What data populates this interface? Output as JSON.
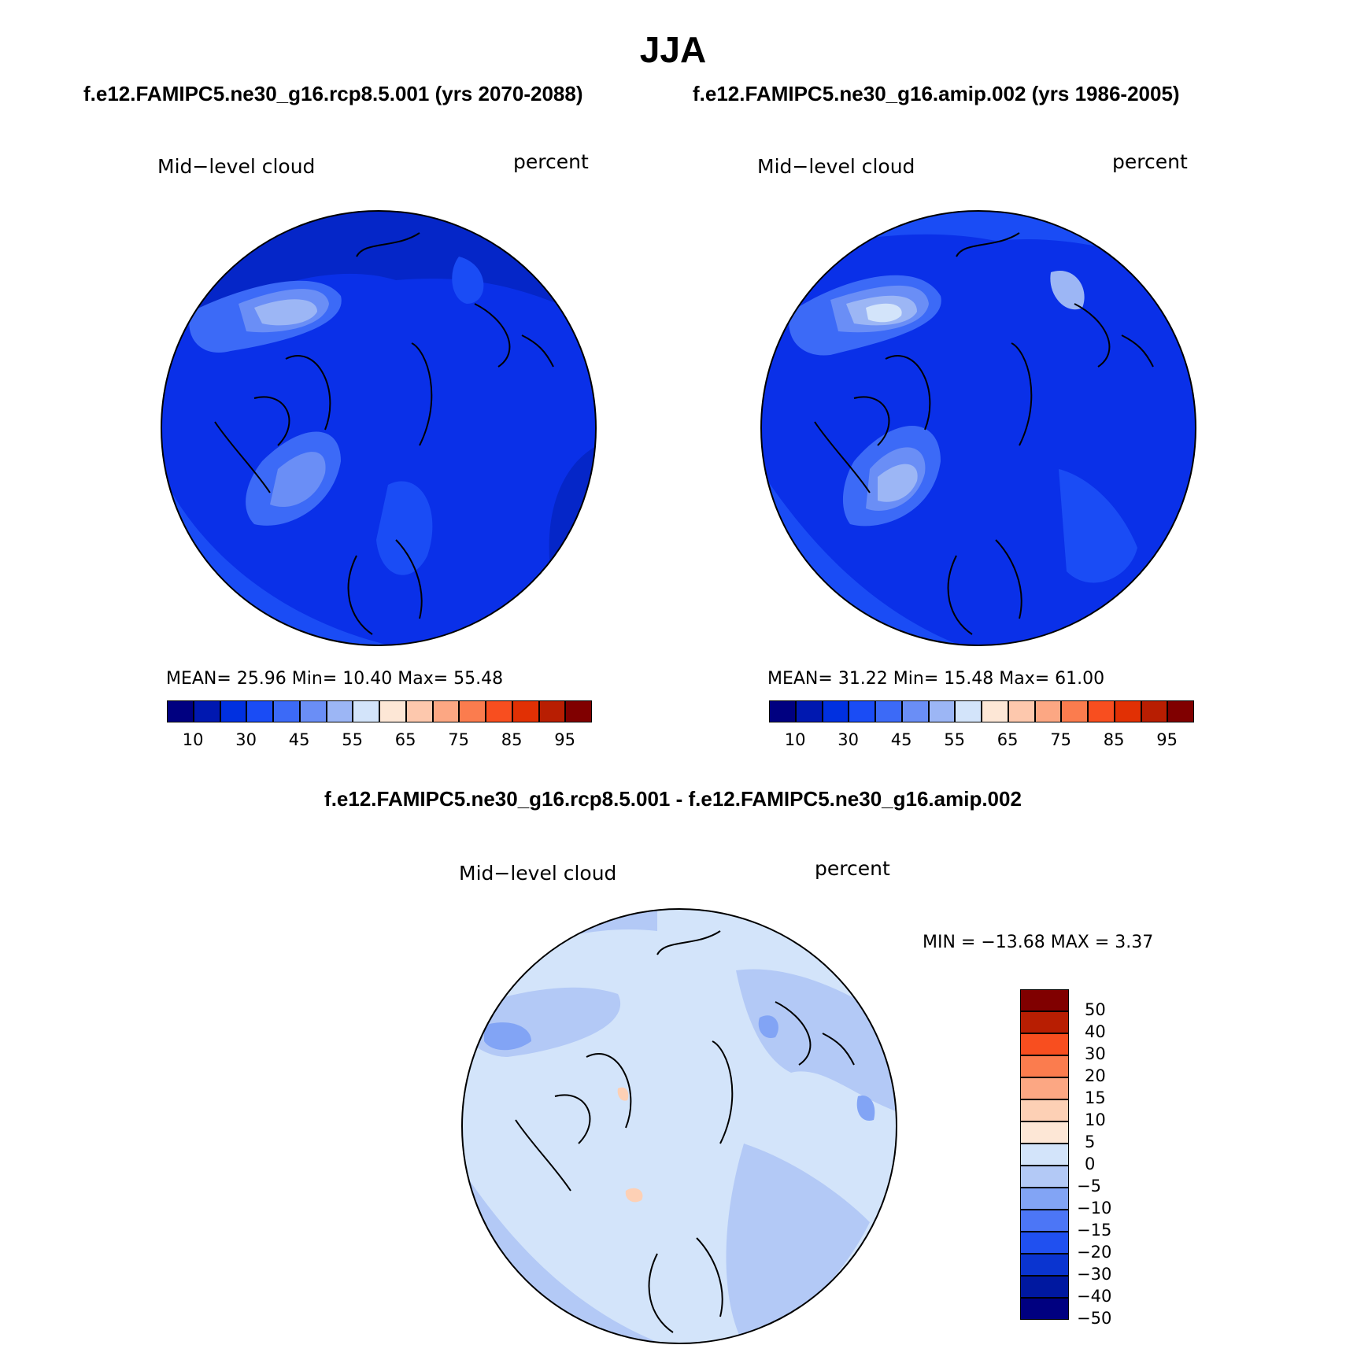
{
  "title": "JJA",
  "subtitle_left": "f.e12.FAMIPC5.ne30_g16.rcp8.5.001 (yrs 2070-2088)",
  "subtitle_right": "f.e12.FAMIPC5.ne30_g16.amip.002 (yrs 1986-2005)",
  "diff_title": "f.e12.FAMIPC5.ne30_g16.rcp8.5.001 - f.e12.FAMIPC5.ne30_g16.amip.002",
  "panels": [
    {
      "variable": "Mid−level cloud",
      "units": "percent",
      "stats": "MEAN=   25.96   Min=   10.40   Max=   55.48"
    },
    {
      "variable": "Mid−level cloud",
      "units": "percent",
      "stats": "MEAN=   31.22   Min=   15.48   Max=   61.00"
    },
    {
      "variable": "Mid−level cloud",
      "units": "percent",
      "stats": "MIN = −13.68 MAX =    3.37"
    }
  ],
  "abs_colorbar": {
    "colors": [
      "#000080",
      "#0018b0",
      "#0030e0",
      "#1a4cf5",
      "#3c6af7",
      "#6a8ef6",
      "#9cb6f5",
      "#d3e4fa",
      "#fde7d6",
      "#fdc8ad",
      "#fca783",
      "#fb7c4e",
      "#f84e1f",
      "#e13004",
      "#b81e02",
      "#800000"
    ],
    "labels": [
      "10",
      "30",
      "45",
      "55",
      "65",
      "75",
      "85",
      "95"
    ]
  },
  "diff_colorbar": {
    "colors": [
      "#800000",
      "#b81e02",
      "#f84e1f",
      "#fb7c4e",
      "#fca783",
      "#fdd0b5",
      "#fde7d6",
      "#d3e4fa",
      "#b3c9f6",
      "#82a4f5",
      "#4c76f6",
      "#2050f0",
      "#0a34d0",
      "#0018a0",
      "#000080"
    ],
    "labels": [
      "50",
      "40",
      "30",
      "20",
      "15",
      "10",
      "5",
      "0",
      "−5",
      "−10",
      "−15",
      "−20",
      "−30",
      "−40",
      "−50"
    ]
  },
  "colors": {
    "base_abs": "#0a30e8",
    "base_diff": "#d3e4fa",
    "coast": "#000000"
  }
}
